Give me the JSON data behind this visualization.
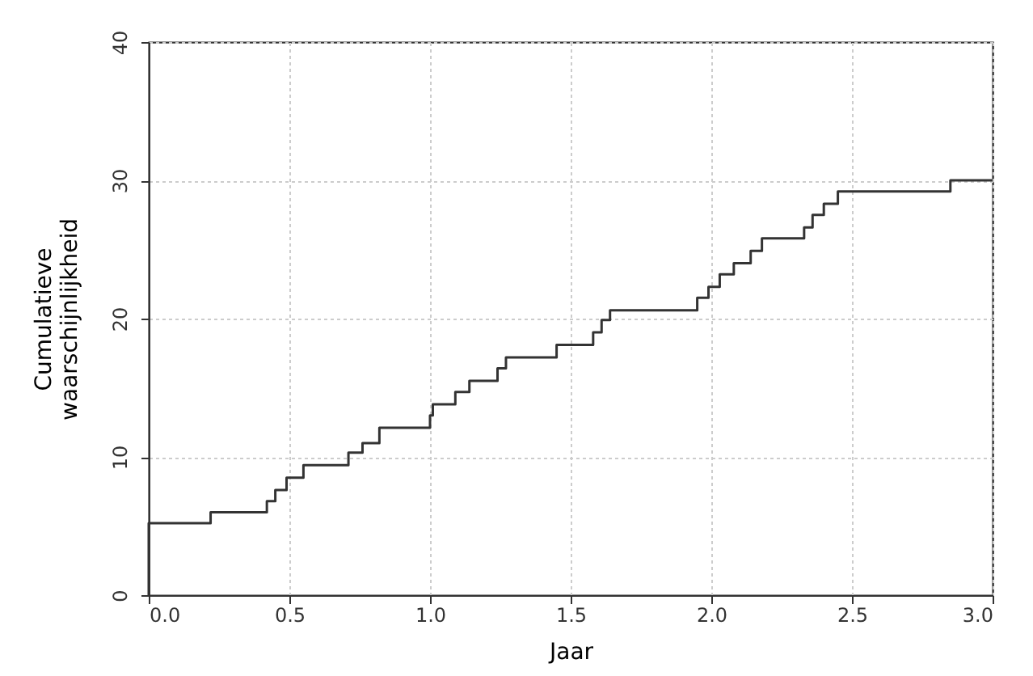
{
  "chart_data": {
    "type": "step",
    "xlabel": "Jaar",
    "ylabel": "Cumulatieve\nwaarschijnlijkheid",
    "x": [
      0,
      0,
      0.22,
      0.42,
      0.45,
      0.49,
      0.55,
      0.71,
      0.76,
      0.82,
      1.0,
      1.01,
      1.09,
      1.14,
      1.24,
      1.27,
      1.45,
      1.58,
      1.61,
      1.64,
      1.95,
      1.99,
      2.03,
      2.08,
      2.14,
      2.18,
      2.33,
      2.36,
      2.4,
      2.45,
      2.85,
      3.0
    ],
    "series": [
      {
        "color": "#333333",
        "values": [
          0,
          5.2,
          6.0,
          6.8,
          7.6,
          8.5,
          9.4,
          10.3,
          11.0,
          12.1,
          13.0,
          13.8,
          14.7,
          15.5,
          16.4,
          17.2,
          18.1,
          19.0,
          19.9,
          20.6,
          21.5,
          22.3,
          23.2,
          24.0,
          24.9,
          25.8,
          26.6,
          27.5,
          28.3,
          29.2,
          30.0,
          30.0
        ]
      }
    ],
    "xlim": [
      0,
      3
    ],
    "ylim": [
      0,
      40
    ],
    "xticks": [
      {
        "value": 0,
        "label": "0.0"
      },
      0.5,
      {
        "value": 1,
        "label": "1.0"
      },
      1.5,
      {
        "value": 2,
        "label": "2.0"
      },
      2.5,
      {
        "value": 3,
        "label": "3.0"
      }
    ],
    "yticks": [
      0,
      10,
      20,
      30,
      40
    ],
    "grid": true,
    "marker": "none",
    "line_style": "solid"
  }
}
